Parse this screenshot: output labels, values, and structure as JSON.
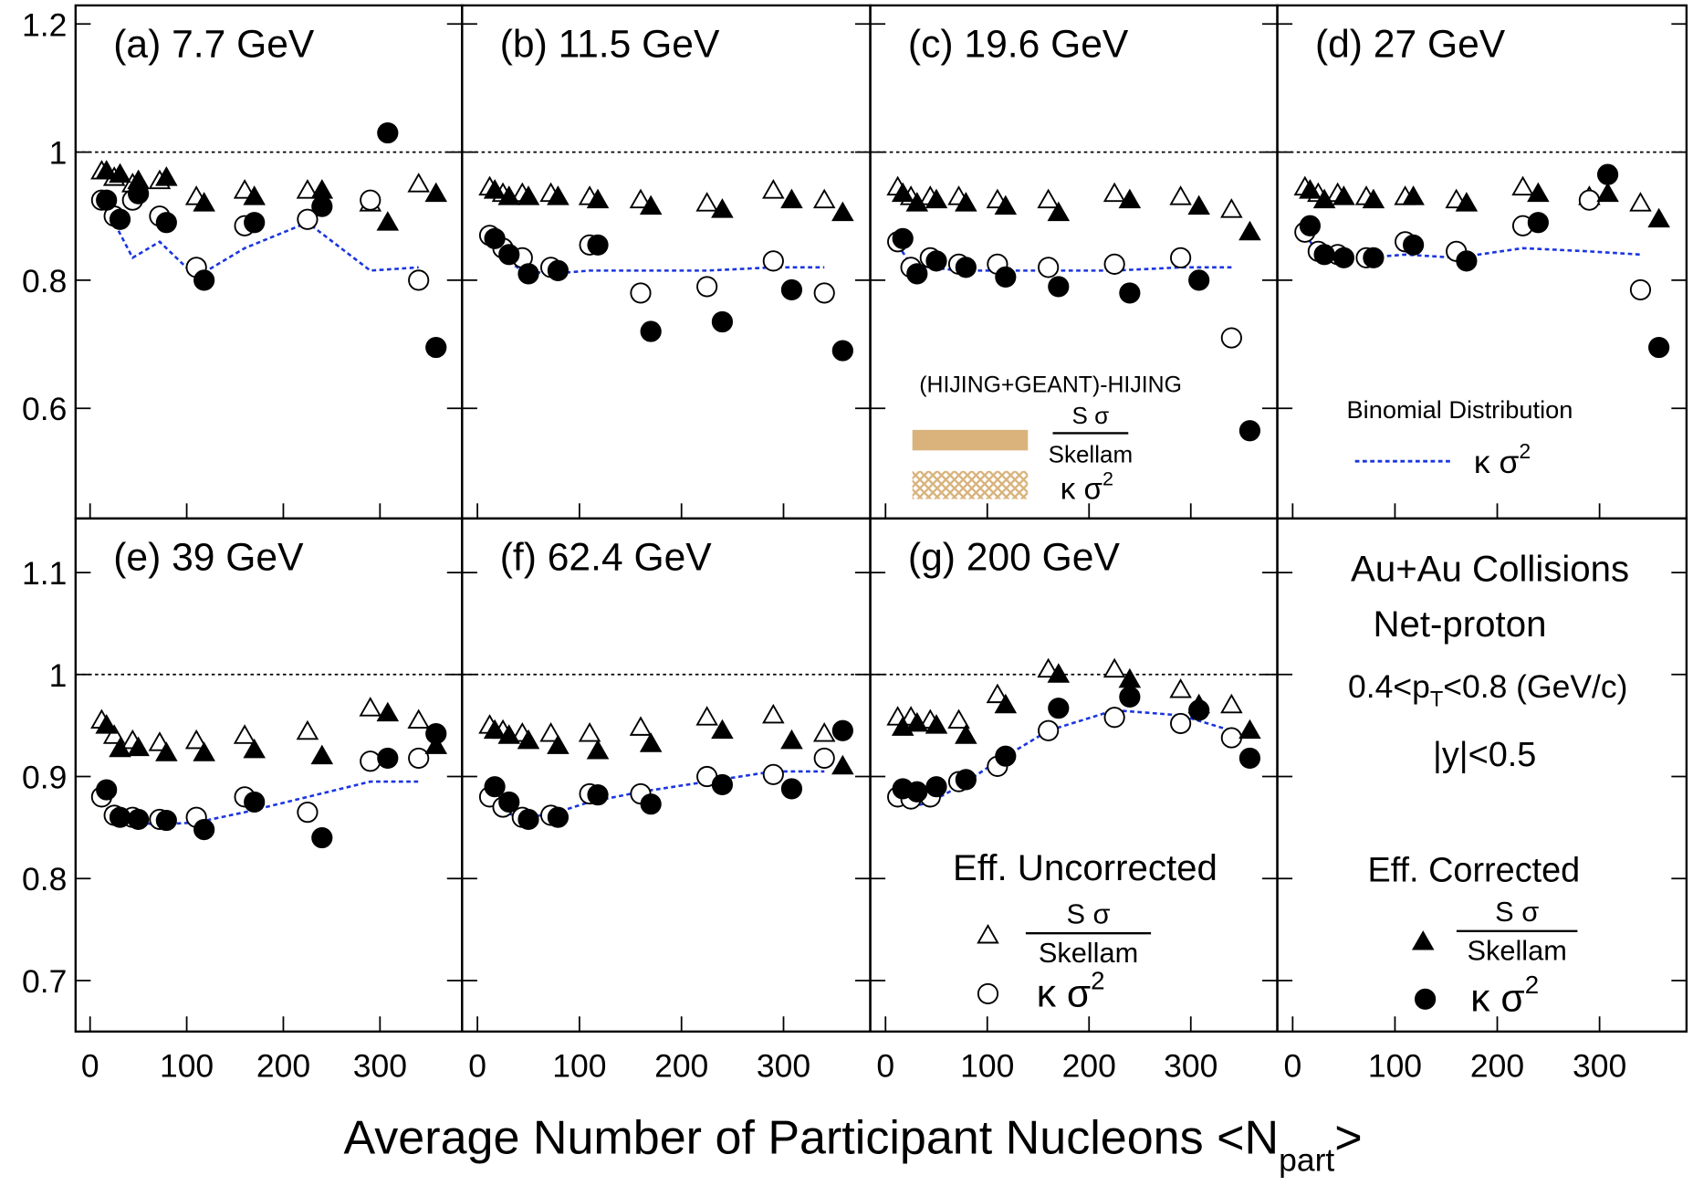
{
  "chart_data": [
    {
      "type": "scatter",
      "title": "(a) 7.7 GeV",
      "xlim": [
        -15,
        385
      ],
      "xticks": [
        0,
        100,
        200,
        300
      ],
      "ylim": [
        0.428,
        1.229
      ],
      "yticks": [
        0.6,
        0.8,
        1,
        1.2
      ],
      "hline": 1,
      "series": [
        {
          "marker": "dashed-line",
          "color": "#1a35e0",
          "x": [
            12,
            25,
            44,
            72,
            110,
            160,
            225,
            290,
            340
          ],
          "values": [
            0.93,
            0.89,
            0.835,
            0.86,
            0.805,
            0.85,
            0.89,
            0.815,
            0.82
          ]
        },
        {
          "marker": "open-triangle",
          "color": "#000000",
          "x": [
            12,
            25,
            44,
            72,
            110,
            160,
            225,
            290,
            340
          ],
          "values": [
            0.97,
            0.96,
            0.95,
            0.955,
            0.93,
            0.94,
            0.94,
            0.92,
            0.95
          ]
        },
        {
          "marker": "open-circle",
          "color": "#000000",
          "x": [
            12,
            25,
            44,
            72,
            110,
            160,
            225,
            290,
            340
          ],
          "values": [
            0.925,
            0.9,
            0.925,
            0.9,
            0.82,
            0.885,
            0.895,
            0.925,
            0.8
          ]
        },
        {
          "marker": "filled-triangle",
          "color": "#000000",
          "x": [
            17,
            31,
            50,
            79,
            118,
            170,
            240,
            308,
            358
          ],
          "values": [
            0.97,
            0.965,
            0.955,
            0.96,
            0.92,
            0.93,
            0.94,
            0.89,
            0.935
          ]
        },
        {
          "marker": "filled-circle",
          "color": "#000000",
          "x": [
            17,
            31,
            50,
            79,
            118,
            170,
            240,
            308,
            358
          ],
          "values": [
            0.925,
            0.895,
            0.935,
            0.89,
            0.8,
            0.89,
            0.915,
            1.03,
            0.695
          ]
        }
      ]
    },
    {
      "type": "scatter",
      "title": "(b) 11.5 GeV",
      "xlim": [
        -15,
        385
      ],
      "xticks": [
        0,
        100,
        200,
        300
      ],
      "ylim": [
        0.428,
        1.229
      ],
      "yticks": [
        0.6,
        0.8,
        1,
        1.2
      ],
      "hline": 1,
      "series": [
        {
          "marker": "dashed-line",
          "color": "#1a35e0",
          "x": [
            12,
            25,
            44,
            72,
            110,
            160,
            225,
            290,
            340
          ],
          "values": [
            0.865,
            0.835,
            0.815,
            0.81,
            0.815,
            0.815,
            0.815,
            0.82,
            0.82
          ]
        },
        {
          "marker": "open-triangle",
          "color": "#000000",
          "x": [
            12,
            25,
            44,
            72,
            110,
            160,
            225,
            290,
            340
          ],
          "values": [
            0.945,
            0.935,
            0.935,
            0.935,
            0.93,
            0.925,
            0.92,
            0.94,
            0.925
          ]
        },
        {
          "marker": "open-circle",
          "color": "#000000",
          "x": [
            12,
            25,
            44,
            72,
            110,
            160,
            225,
            290,
            340
          ],
          "values": [
            0.87,
            0.85,
            0.835,
            0.82,
            0.855,
            0.78,
            0.79,
            0.83,
            0.78
          ]
        },
        {
          "marker": "filled-triangle",
          "color": "#000000",
          "x": [
            17,
            31,
            50,
            79,
            118,
            170,
            240,
            308,
            358
          ],
          "values": [
            0.94,
            0.93,
            0.93,
            0.93,
            0.925,
            0.915,
            0.91,
            0.925,
            0.905
          ]
        },
        {
          "marker": "filled-circle",
          "color": "#000000",
          "x": [
            17,
            31,
            50,
            79,
            118,
            170,
            240,
            308,
            358
          ],
          "values": [
            0.865,
            0.84,
            0.81,
            0.815,
            0.855,
            0.72,
            0.735,
            0.785,
            0.69
          ]
        }
      ]
    },
    {
      "type": "scatter",
      "title": "(c) 19.6 GeV",
      "xlim": [
        -15,
        385
      ],
      "xticks": [
        0,
        100,
        200,
        300
      ],
      "ylim": [
        0.428,
        1.229
      ],
      "yticks": [
        0.6,
        0.8,
        1,
        1.2
      ],
      "hline": 1,
      "series": [
        {
          "marker": "dashed-line",
          "color": "#1a35e0",
          "x": [
            12,
            25,
            44,
            72,
            110,
            160,
            225,
            290,
            340
          ],
          "values": [
            0.855,
            0.825,
            0.82,
            0.815,
            0.815,
            0.815,
            0.815,
            0.82,
            0.82
          ]
        },
        {
          "marker": "open-triangle",
          "color": "#000000",
          "x": [
            12,
            25,
            44,
            72,
            110,
            160,
            225,
            290,
            340
          ],
          "values": [
            0.945,
            0.93,
            0.93,
            0.93,
            0.925,
            0.925,
            0.935,
            0.93,
            0.91
          ]
        },
        {
          "marker": "open-circle",
          "color": "#000000",
          "x": [
            12,
            25,
            44,
            72,
            110,
            160,
            225,
            290,
            340
          ],
          "values": [
            0.86,
            0.82,
            0.835,
            0.825,
            0.825,
            0.82,
            0.825,
            0.835,
            0.71
          ]
        },
        {
          "marker": "filled-triangle",
          "color": "#000000",
          "x": [
            17,
            31,
            50,
            79,
            118,
            170,
            240,
            308,
            358
          ],
          "values": [
            0.935,
            0.92,
            0.925,
            0.92,
            0.915,
            0.905,
            0.925,
            0.915,
            0.875
          ]
        },
        {
          "marker": "filled-circle",
          "color": "#000000",
          "x": [
            17,
            31,
            50,
            79,
            118,
            170,
            240,
            308,
            358
          ],
          "values": [
            0.865,
            0.81,
            0.83,
            0.82,
            0.805,
            0.79,
            0.78,
            0.8,
            0.565
          ]
        }
      ]
    },
    {
      "type": "scatter",
      "title": "(d) 27 GeV",
      "xlim": [
        -15,
        385
      ],
      "xticks": [
        0,
        100,
        200,
        300
      ],
      "ylim": [
        0.428,
        1.229
      ],
      "yticks": [
        0.6,
        0.8,
        1,
        1.2
      ],
      "hline": 1,
      "series": [
        {
          "marker": "dashed-line",
          "color": "#1a35e0",
          "x": [
            12,
            25,
            44,
            72,
            110,
            160,
            225,
            290,
            340
          ],
          "values": [
            0.87,
            0.845,
            0.835,
            0.835,
            0.84,
            0.835,
            0.85,
            0.845,
            0.84
          ]
        },
        {
          "marker": "open-triangle",
          "color": "#000000",
          "x": [
            12,
            25,
            44,
            72,
            110,
            160,
            225,
            290,
            340
          ],
          "values": [
            0.945,
            0.935,
            0.935,
            0.93,
            0.93,
            0.925,
            0.945,
            0.93,
            0.92
          ]
        },
        {
          "marker": "open-circle",
          "color": "#000000",
          "x": [
            12,
            25,
            44,
            72,
            110,
            160,
            225,
            290,
            340
          ],
          "values": [
            0.875,
            0.845,
            0.84,
            0.835,
            0.86,
            0.845,
            0.885,
            0.925,
            0.785
          ]
        },
        {
          "marker": "filled-triangle",
          "color": "#000000",
          "x": [
            17,
            31,
            50,
            79,
            118,
            170,
            240,
            308,
            358
          ],
          "values": [
            0.94,
            0.925,
            0.93,
            0.925,
            0.93,
            0.92,
            0.935,
            0.935,
            0.895
          ]
        },
        {
          "marker": "filled-circle",
          "color": "#000000",
          "x": [
            17,
            31,
            50,
            79,
            118,
            170,
            240,
            308,
            358
          ],
          "values": [
            0.885,
            0.84,
            0.835,
            0.835,
            0.855,
            0.83,
            0.89,
            0.965,
            0.695
          ]
        }
      ]
    },
    {
      "type": "scatter",
      "title": "(e) 39 GeV",
      "xlim": [
        -15,
        385
      ],
      "xticks": [
        0,
        100,
        200,
        300
      ],
      "ylim": [
        0.65,
        1.153
      ],
      "yticks": [
        0.7,
        0.8,
        0.9,
        1,
        1.1
      ],
      "hline": 1,
      "series": [
        {
          "marker": "dashed-line",
          "color": "#1a35e0",
          "x": [
            12,
            25,
            44,
            72,
            110,
            160,
            225,
            290,
            340
          ],
          "values": [
            0.875,
            0.86,
            0.855,
            0.853,
            0.855,
            0.865,
            0.88,
            0.895,
            0.895
          ]
        },
        {
          "marker": "open-triangle",
          "color": "#000000",
          "x": [
            12,
            25,
            44,
            72,
            110,
            160,
            225,
            290,
            340
          ],
          "values": [
            0.955,
            0.94,
            0.935,
            0.933,
            0.935,
            0.94,
            0.944,
            0.967,
            0.955
          ]
        },
        {
          "marker": "open-circle",
          "color": "#000000",
          "x": [
            12,
            25,
            44,
            72,
            110,
            160,
            225,
            290,
            340
          ],
          "values": [
            0.88,
            0.862,
            0.86,
            0.858,
            0.86,
            0.88,
            0.865,
            0.915,
            0.918
          ]
        },
        {
          "marker": "filled-triangle",
          "color": "#000000",
          "x": [
            17,
            31,
            50,
            79,
            118,
            170,
            240,
            308,
            358
          ],
          "values": [
            0.95,
            0.927,
            0.928,
            0.923,
            0.923,
            0.926,
            0.92,
            0.962,
            0.93
          ]
        },
        {
          "marker": "filled-circle",
          "color": "#000000",
          "x": [
            17,
            31,
            50,
            79,
            118,
            170,
            240,
            308,
            358
          ],
          "values": [
            0.887,
            0.86,
            0.858,
            0.857,
            0.848,
            0.875,
            0.84,
            0.918,
            0.942
          ]
        }
      ]
    },
    {
      "type": "scatter",
      "title": "(f) 62.4 GeV",
      "xlim": [
        -15,
        385
      ],
      "xticks": [
        0,
        100,
        200,
        300
      ],
      "ylim": [
        0.65,
        1.153
      ],
      "yticks": [
        0.7,
        0.8,
        0.9,
        1,
        1.1
      ],
      "hline": 1,
      "series": [
        {
          "marker": "dashed-line",
          "color": "#1a35e0",
          "x": [
            12,
            25,
            44,
            72,
            110,
            160,
            225,
            290,
            340
          ],
          "values": [
            0.875,
            0.865,
            0.86,
            0.863,
            0.875,
            0.885,
            0.895,
            0.905,
            0.905
          ]
        },
        {
          "marker": "open-triangle",
          "color": "#000000",
          "x": [
            12,
            25,
            44,
            72,
            110,
            160,
            225,
            290,
            340
          ],
          "values": [
            0.95,
            0.945,
            0.942,
            0.942,
            0.942,
            0.948,
            0.958,
            0.96,
            0.942
          ]
        },
        {
          "marker": "open-circle",
          "color": "#000000",
          "x": [
            12,
            25,
            44,
            72,
            110,
            160,
            225,
            290,
            340
          ],
          "values": [
            0.88,
            0.87,
            0.86,
            0.862,
            0.883,
            0.883,
            0.9,
            0.902,
            0.918
          ]
        },
        {
          "marker": "filled-triangle",
          "color": "#000000",
          "x": [
            17,
            31,
            50,
            79,
            118,
            170,
            240,
            308,
            358
          ],
          "values": [
            0.945,
            0.94,
            0.935,
            0.93,
            0.925,
            0.932,
            0.945,
            0.935,
            0.91
          ]
        },
        {
          "marker": "filled-circle",
          "color": "#000000",
          "x": [
            17,
            31,
            50,
            79,
            118,
            170,
            240,
            308,
            358
          ],
          "values": [
            0.89,
            0.875,
            0.858,
            0.86,
            0.882,
            0.873,
            0.892,
            0.888,
            0.945
          ]
        }
      ]
    },
    {
      "type": "scatter",
      "title": "(g) 200 GeV",
      "xlim": [
        -15,
        385
      ],
      "xticks": [
        0,
        100,
        200,
        300
      ],
      "ylim": [
        0.65,
        1.153
      ],
      "yticks": [
        0.7,
        0.8,
        0.9,
        1,
        1.1
      ],
      "hline": 1,
      "series": [
        {
          "marker": "dashed-line",
          "color": "#1a35e0",
          "x": [
            12,
            25,
            44,
            72,
            110,
            160,
            225,
            290,
            340
          ],
          "values": [
            0.875,
            0.87,
            0.875,
            0.89,
            0.915,
            0.945,
            0.965,
            0.96,
            0.945
          ]
        },
        {
          "marker": "open-triangle",
          "color": "#000000",
          "x": [
            12,
            25,
            44,
            72,
            110,
            160,
            225,
            290,
            340
          ],
          "values": [
            0.958,
            0.958,
            0.955,
            0.955,
            0.98,
            1.005,
            1.005,
            0.985,
            0.97
          ]
        },
        {
          "marker": "open-circle",
          "color": "#000000",
          "x": [
            12,
            25,
            44,
            72,
            110,
            160,
            225,
            290,
            340
          ],
          "values": [
            0.88,
            0.878,
            0.88,
            0.895,
            0.91,
            0.945,
            0.958,
            0.952,
            0.938
          ]
        },
        {
          "marker": "filled-triangle",
          "color": "#000000",
          "x": [
            17,
            31,
            50,
            79,
            118,
            170,
            240,
            308,
            358
          ],
          "values": [
            0.948,
            0.952,
            0.95,
            0.94,
            0.97,
            1.0,
            0.995,
            0.97,
            0.945
          ]
        },
        {
          "marker": "filled-circle",
          "color": "#000000",
          "x": [
            17,
            31,
            50,
            79,
            118,
            170,
            240,
            308,
            358
          ],
          "values": [
            0.888,
            0.885,
            0.89,
            0.897,
            0.92,
            0.967,
            0.978,
            0.965,
            0.918
          ]
        }
      ]
    },
    {
      "type": "legend",
      "xlim": [
        -15,
        385
      ],
      "xticks": [
        0,
        100,
        200,
        300
      ],
      "ylim": [
        0.65,
        1.153
      ],
      "yticks": [
        0.7,
        0.8,
        0.9,
        1,
        1.1
      ]
    }
  ],
  "xlabel": [
    "Average Number of Participant Nucleons <N",
    "part",
    ">"
  ],
  "notes": {
    "system": "Au+Au Collisions",
    "particle": "Net-proton",
    "pt": [
      "0.4<p",
      "T",
      "<0.8 (GeV/c)"
    ],
    "rapidity": "|y|<0.5"
  },
  "legend": {
    "sys_title": "(HIJING+GEANT)-HIJING",
    "band_color": "#d9b27c",
    "binomial_title": "Binomial Distribution",
    "uncorrected": "Eff. Uncorrected",
    "corrected": "Eff. Corrected",
    "ratio_num": "S σ",
    "ratio_den": "Skellam",
    "kappa": "κ σ",
    "kappa_sup": "2"
  }
}
